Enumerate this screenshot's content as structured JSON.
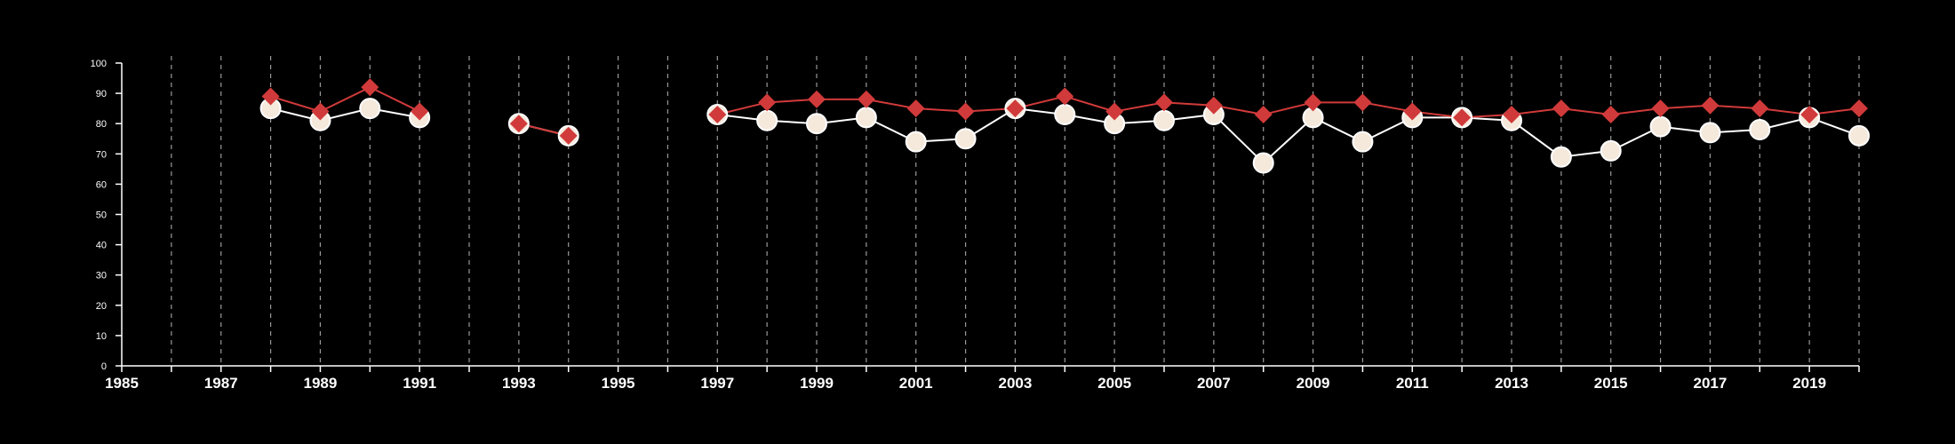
{
  "chart_data": {
    "type": "line",
    "title": "",
    "xlabel": "",
    "ylabel": "",
    "xlim": [
      1985,
      2020
    ],
    "ylim": [
      0,
      100
    ],
    "y_ticks": [
      "0",
      "10",
      "20",
      "30",
      "40",
      "50",
      "60",
      "70",
      "80",
      "90",
      "100"
    ],
    "x_ticks": [
      "1985",
      "1987",
      "1989",
      "1991",
      "1993",
      "1995",
      "1997",
      "1999",
      "2001",
      "2003",
      "2005",
      "2007",
      "2009",
      "2011",
      "2013",
      "2015",
      "2017",
      "2019"
    ],
    "vertical_grid": "dashed, every year",
    "horizontal_grid": false,
    "legend": "none",
    "x": [
      1988,
      1989,
      1990,
      1991,
      1992,
      1993,
      1994,
      1995,
      1996,
      1997,
      1998,
      1999,
      2000,
      2001,
      2002,
      2003,
      2004,
      2005,
      2006,
      2007,
      2008,
      2009,
      2010,
      2011,
      2012,
      2013,
      2014,
      2015,
      2016,
      2017,
      2018,
      2019,
      2020
    ],
    "series": [
      {
        "marker": "circle",
        "color": "#ffffff",
        "fill": "#f5e9dc",
        "values": [
          85,
          81,
          85,
          82,
          null,
          80,
          76,
          null,
          null,
          83,
          81,
          80,
          82,
          74,
          75,
          85,
          83,
          80,
          81,
          83,
          67,
          82,
          74,
          82,
          82,
          81,
          69,
          71,
          79,
          77,
          78,
          82,
          76
        ]
      },
      {
        "marker": "diamond",
        "color": "#d13a3a",
        "values": [
          89,
          84,
          92,
          84,
          null,
          80,
          76,
          null,
          null,
          83,
          87,
          88,
          88,
          85,
          84,
          85,
          89,
          84,
          87,
          86,
          83,
          87,
          87,
          84,
          82,
          83,
          85,
          83,
          85,
          86,
          85,
          83,
          85
        ]
      }
    ]
  }
}
